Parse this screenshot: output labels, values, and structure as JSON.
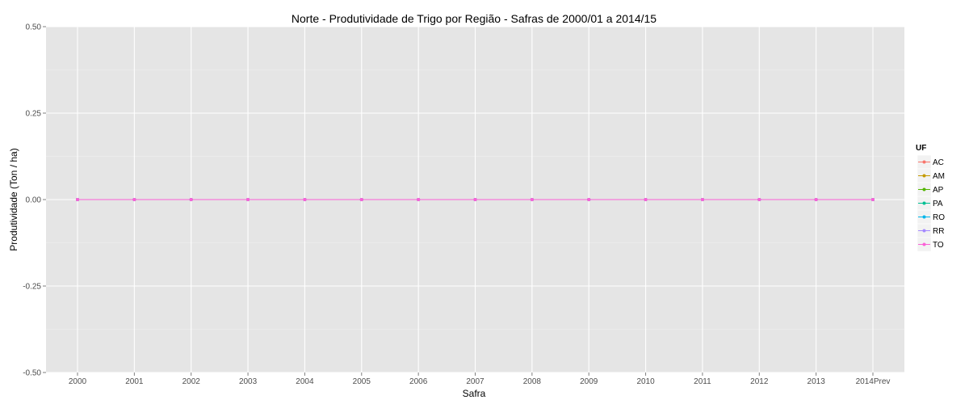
{
  "chart_data": {
    "type": "line",
    "title": "Norte  - Produtividade de Trigo por Região - Safras de 2000/01 a 2014/15",
    "xlabel": "Safra",
    "ylabel": "Produtividade (Ton / ha)",
    "categories": [
      "2000",
      "2001",
      "2002",
      "2003",
      "2004",
      "2005",
      "2006",
      "2007",
      "2008",
      "2009",
      "2010",
      "2011",
      "2012",
      "2013",
      "2014Prev"
    ],
    "ylim": [
      -0.5,
      0.5
    ],
    "yticks": [
      0.5,
      0.25,
      0.0,
      -0.25,
      -0.5
    ],
    "ytick_labels": [
      "0.50",
      "0.25",
      "0.00",
      "-0.25",
      "-0.50"
    ],
    "grid": true,
    "legend": {
      "title": "UF",
      "position": "right"
    },
    "series": [
      {
        "name": "AC",
        "color": "#F8766D",
        "values": [
          0,
          0,
          0,
          0,
          0,
          0,
          0,
          0,
          0,
          0,
          0,
          0,
          0,
          0,
          0
        ]
      },
      {
        "name": "AM",
        "color": "#C49A00",
        "values": [
          0,
          0,
          0,
          0,
          0,
          0,
          0,
          0,
          0,
          0,
          0,
          0,
          0,
          0,
          0
        ]
      },
      {
        "name": "AP",
        "color": "#53B400",
        "values": [
          0,
          0,
          0,
          0,
          0,
          0,
          0,
          0,
          0,
          0,
          0,
          0,
          0,
          0,
          0
        ]
      },
      {
        "name": "PA",
        "color": "#00C094",
        "values": [
          0,
          0,
          0,
          0,
          0,
          0,
          0,
          0,
          0,
          0,
          0,
          0,
          0,
          0,
          0
        ]
      },
      {
        "name": "RO",
        "color": "#00B6EB",
        "values": [
          0,
          0,
          0,
          0,
          0,
          0,
          0,
          0,
          0,
          0,
          0,
          0,
          0,
          0,
          0
        ]
      },
      {
        "name": "RR",
        "color": "#A58AFF",
        "values": [
          0,
          0,
          0,
          0,
          0,
          0,
          0,
          0,
          0,
          0,
          0,
          0,
          0,
          0,
          0
        ]
      },
      {
        "name": "TO",
        "color": "#FB61D7",
        "values": [
          0,
          0,
          0,
          0,
          0,
          0,
          0,
          0,
          0,
          0,
          0,
          0,
          0,
          0,
          0
        ]
      }
    ]
  }
}
